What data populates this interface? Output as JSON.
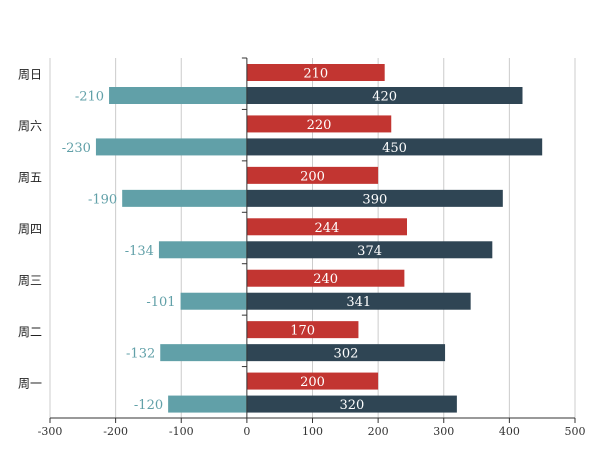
{
  "chart_data": {
    "type": "bar",
    "orientation": "horizontal",
    "categories": [
      "周一",
      "周二",
      "周三",
      "周四",
      "周五",
      "周六",
      "周日"
    ],
    "series": [
      {
        "values": [
          200,
          170,
          240,
          244,
          200,
          220,
          210
        ],
        "color": "#c23531"
      },
      {
        "values": [
          320,
          302,
          341,
          374,
          390,
          450,
          420
        ],
        "color": "#2f4554"
      },
      {
        "values": [
          -120,
          -132,
          -101,
          -134,
          -190,
          -230,
          -210
        ],
        "color": "#61a0a8"
      }
    ],
    "xlim": [
      -300,
      500
    ],
    "xticks": [
      -300,
      -200,
      -100,
      0,
      100,
      200,
      300,
      400,
      500
    ],
    "grid": true,
    "data_labels": true,
    "title": "",
    "xlabel": "",
    "ylabel": ""
  }
}
